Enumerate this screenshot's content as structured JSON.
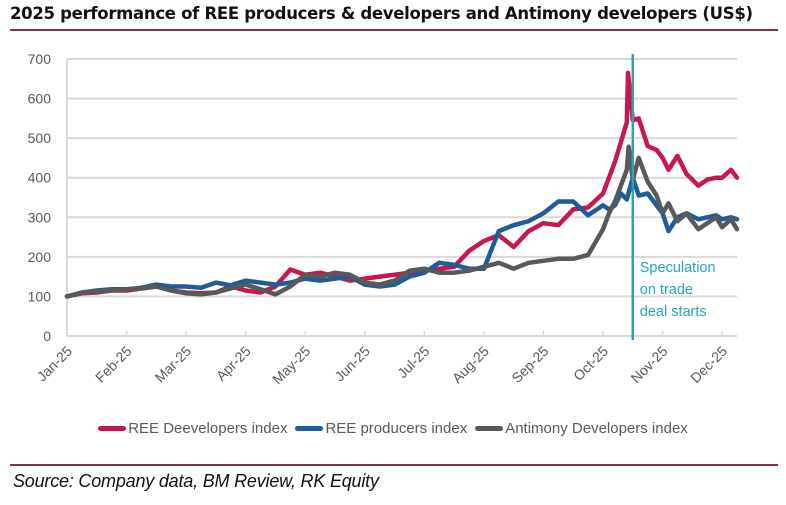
{
  "title": "2025 performance of REE producers & developers and Antimony developers (US$)",
  "source": "Source: Company data, BM Review, RK Equity",
  "chart_data": {
    "type": "line",
    "title": "2025 performance of REE producers & developers and Antimony developers (US$)",
    "xlabel": "",
    "ylabel": "",
    "ylim": [
      0,
      700
    ],
    "yticks": [
      0,
      100,
      200,
      300,
      400,
      500,
      600,
      700
    ],
    "x_tick_labels": [
      "Jan-25",
      "Feb-25",
      "Mar-25",
      "Apr-25",
      "May-25",
      "Jun-25",
      "Jul-25",
      "Aug-25",
      "Sep-25",
      "Oct-25",
      "Nov-25",
      "Dec-25"
    ],
    "x_units": "months since Jan-25",
    "xlim": [
      0,
      11.25
    ],
    "grid": "horizontal",
    "legend_position": "bottom",
    "annotation": {
      "x": 9.5,
      "label_lines": [
        "Speculation",
        "on trade",
        "deal starts"
      ],
      "color": "#2aa0c2"
    },
    "series": [
      {
        "name": "REE Deevelopers index",
        "color": "#c8174a",
        "x": [
          0,
          0.25,
          0.5,
          0.75,
          1,
          1.25,
          1.5,
          1.75,
          2,
          2.25,
          2.5,
          2.75,
          3,
          3.25,
          3.5,
          3.75,
          4,
          4.25,
          4.5,
          4.75,
          5,
          5.25,
          5.5,
          5.75,
          6,
          6.25,
          6.5,
          6.75,
          7,
          7.25,
          7.5,
          7.75,
          8,
          8.25,
          8.5,
          8.75,
          9,
          9.1,
          9.2,
          9.3,
          9.4,
          9.42,
          9.5,
          9.6,
          9.75,
          9.9,
          10,
          10.1,
          10.25,
          10.4,
          10.6,
          10.75,
          10.9,
          11,
          11.15,
          11.25
        ],
        "values": [
          100,
          108,
          110,
          115,
          115,
          120,
          125,
          115,
          110,
          108,
          110,
          125,
          115,
          110,
          125,
          168,
          155,
          160,
          150,
          140,
          145,
          150,
          155,
          160,
          165,
          170,
          175,
          215,
          240,
          255,
          225,
          265,
          285,
          280,
          320,
          325,
          360,
          400,
          440,
          490,
          540,
          665,
          545,
          550,
          480,
          470,
          450,
          420,
          455,
          410,
          380,
          395,
          400,
          400,
          420,
          400
        ]
      },
      {
        "name": "REE producers index",
        "color": "#1f5c99",
        "x": [
          0,
          0.25,
          0.5,
          0.75,
          1,
          1.25,
          1.5,
          1.75,
          2,
          2.25,
          2.5,
          2.75,
          3,
          3.25,
          3.5,
          3.75,
          4,
          4.25,
          4.5,
          4.75,
          5,
          5.25,
          5.5,
          5.75,
          6,
          6.25,
          6.5,
          6.75,
          7,
          7.25,
          7.5,
          7.75,
          8,
          8.25,
          8.5,
          8.75,
          9,
          9.1,
          9.2,
          9.3,
          9.4,
          9.5,
          9.6,
          9.75,
          9.9,
          10,
          10.1,
          10.25,
          10.4,
          10.6,
          10.75,
          10.9,
          11,
          11.15,
          11.25
        ],
        "values": [
          100,
          110,
          115,
          118,
          118,
          122,
          130,
          125,
          125,
          122,
          135,
          128,
          140,
          135,
          130,
          135,
          145,
          140,
          145,
          150,
          130,
          125,
          130,
          150,
          160,
          185,
          180,
          170,
          170,
          265,
          280,
          290,
          310,
          340,
          340,
          305,
          330,
          320,
          330,
          360,
          345,
          400,
          355,
          360,
          330,
          310,
          265,
          300,
          310,
          295,
          300,
          305,
          295,
          300,
          295
        ]
      },
      {
        "name": "Antimony Developers index",
        "color": "#595959",
        "x": [
          0,
          0.25,
          0.5,
          0.75,
          1,
          1.25,
          1.5,
          1.75,
          2,
          2.25,
          2.5,
          2.75,
          3,
          3.25,
          3.5,
          3.75,
          4,
          4.25,
          4.5,
          4.75,
          5,
          5.25,
          5.5,
          5.75,
          6,
          6.25,
          6.5,
          6.75,
          7,
          7.25,
          7.5,
          7.75,
          8,
          8.25,
          8.5,
          8.75,
          9,
          9.1,
          9.2,
          9.3,
          9.4,
          9.43,
          9.5,
          9.6,
          9.75,
          9.9,
          10,
          10.1,
          10.25,
          10.4,
          10.6,
          10.75,
          10.9,
          11,
          11.15,
          11.25
        ],
        "values": [
          100,
          110,
          112,
          115,
          118,
          120,
          125,
          115,
          108,
          105,
          110,
          120,
          130,
          118,
          105,
          125,
          155,
          150,
          160,
          155,
          135,
          130,
          140,
          165,
          170,
          160,
          160,
          165,
          175,
          185,
          170,
          185,
          190,
          195,
          195,
          205,
          270,
          310,
          340,
          380,
          420,
          478,
          395,
          450,
          390,
          355,
          310,
          335,
          290,
          310,
          270,
          285,
          300,
          275,
          295,
          270
        ]
      }
    ]
  }
}
